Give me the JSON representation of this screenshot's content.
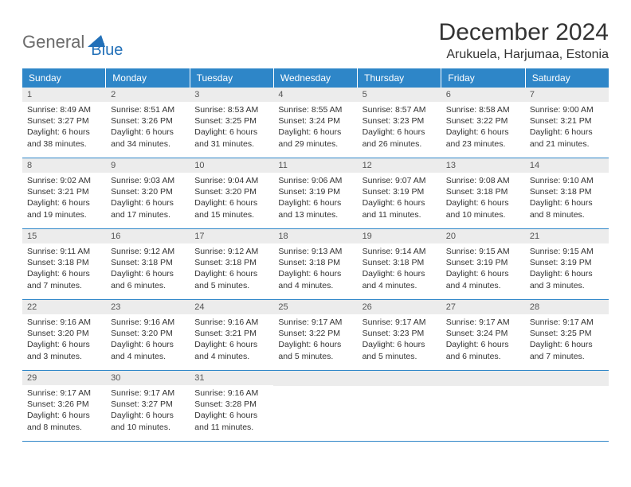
{
  "brand": {
    "part1": "General",
    "part2": "Blue"
  },
  "title": "December 2024",
  "location": "Arukuela, Harjumaa, Estonia",
  "colors": {
    "header_bg": "#2e86c8",
    "header_text": "#ffffff",
    "numbar_bg": "#ececec",
    "border": "#2e86c8",
    "brand_gray": "#6b6b6b",
    "brand_blue": "#2270b8",
    "text": "#333333"
  },
  "day_headers": [
    "Sunday",
    "Monday",
    "Tuesday",
    "Wednesday",
    "Thursday",
    "Friday",
    "Saturday"
  ],
  "weeks": [
    [
      {
        "n": "1",
        "sunrise": "Sunrise: 8:49 AM",
        "sunset": "Sunset: 3:27 PM",
        "day1": "Daylight: 6 hours",
        "day2": "and 38 minutes."
      },
      {
        "n": "2",
        "sunrise": "Sunrise: 8:51 AM",
        "sunset": "Sunset: 3:26 PM",
        "day1": "Daylight: 6 hours",
        "day2": "and 34 minutes."
      },
      {
        "n": "3",
        "sunrise": "Sunrise: 8:53 AM",
        "sunset": "Sunset: 3:25 PM",
        "day1": "Daylight: 6 hours",
        "day2": "and 31 minutes."
      },
      {
        "n": "4",
        "sunrise": "Sunrise: 8:55 AM",
        "sunset": "Sunset: 3:24 PM",
        "day1": "Daylight: 6 hours",
        "day2": "and 29 minutes."
      },
      {
        "n": "5",
        "sunrise": "Sunrise: 8:57 AM",
        "sunset": "Sunset: 3:23 PM",
        "day1": "Daylight: 6 hours",
        "day2": "and 26 minutes."
      },
      {
        "n": "6",
        "sunrise": "Sunrise: 8:58 AM",
        "sunset": "Sunset: 3:22 PM",
        "day1": "Daylight: 6 hours",
        "day2": "and 23 minutes."
      },
      {
        "n": "7",
        "sunrise": "Sunrise: 9:00 AM",
        "sunset": "Sunset: 3:21 PM",
        "day1": "Daylight: 6 hours",
        "day2": "and 21 minutes."
      }
    ],
    [
      {
        "n": "8",
        "sunrise": "Sunrise: 9:02 AM",
        "sunset": "Sunset: 3:21 PM",
        "day1": "Daylight: 6 hours",
        "day2": "and 19 minutes."
      },
      {
        "n": "9",
        "sunrise": "Sunrise: 9:03 AM",
        "sunset": "Sunset: 3:20 PM",
        "day1": "Daylight: 6 hours",
        "day2": "and 17 minutes."
      },
      {
        "n": "10",
        "sunrise": "Sunrise: 9:04 AM",
        "sunset": "Sunset: 3:20 PM",
        "day1": "Daylight: 6 hours",
        "day2": "and 15 minutes."
      },
      {
        "n": "11",
        "sunrise": "Sunrise: 9:06 AM",
        "sunset": "Sunset: 3:19 PM",
        "day1": "Daylight: 6 hours",
        "day2": "and 13 minutes."
      },
      {
        "n": "12",
        "sunrise": "Sunrise: 9:07 AM",
        "sunset": "Sunset: 3:19 PM",
        "day1": "Daylight: 6 hours",
        "day2": "and 11 minutes."
      },
      {
        "n": "13",
        "sunrise": "Sunrise: 9:08 AM",
        "sunset": "Sunset: 3:18 PM",
        "day1": "Daylight: 6 hours",
        "day2": "and 10 minutes."
      },
      {
        "n": "14",
        "sunrise": "Sunrise: 9:10 AM",
        "sunset": "Sunset: 3:18 PM",
        "day1": "Daylight: 6 hours",
        "day2": "and 8 minutes."
      }
    ],
    [
      {
        "n": "15",
        "sunrise": "Sunrise: 9:11 AM",
        "sunset": "Sunset: 3:18 PM",
        "day1": "Daylight: 6 hours",
        "day2": "and 7 minutes."
      },
      {
        "n": "16",
        "sunrise": "Sunrise: 9:12 AM",
        "sunset": "Sunset: 3:18 PM",
        "day1": "Daylight: 6 hours",
        "day2": "and 6 minutes."
      },
      {
        "n": "17",
        "sunrise": "Sunrise: 9:12 AM",
        "sunset": "Sunset: 3:18 PM",
        "day1": "Daylight: 6 hours",
        "day2": "and 5 minutes."
      },
      {
        "n": "18",
        "sunrise": "Sunrise: 9:13 AM",
        "sunset": "Sunset: 3:18 PM",
        "day1": "Daylight: 6 hours",
        "day2": "and 4 minutes."
      },
      {
        "n": "19",
        "sunrise": "Sunrise: 9:14 AM",
        "sunset": "Sunset: 3:18 PM",
        "day1": "Daylight: 6 hours",
        "day2": "and 4 minutes."
      },
      {
        "n": "20",
        "sunrise": "Sunrise: 9:15 AM",
        "sunset": "Sunset: 3:19 PM",
        "day1": "Daylight: 6 hours",
        "day2": "and 4 minutes."
      },
      {
        "n": "21",
        "sunrise": "Sunrise: 9:15 AM",
        "sunset": "Sunset: 3:19 PM",
        "day1": "Daylight: 6 hours",
        "day2": "and 3 minutes."
      }
    ],
    [
      {
        "n": "22",
        "sunrise": "Sunrise: 9:16 AM",
        "sunset": "Sunset: 3:20 PM",
        "day1": "Daylight: 6 hours",
        "day2": "and 3 minutes."
      },
      {
        "n": "23",
        "sunrise": "Sunrise: 9:16 AM",
        "sunset": "Sunset: 3:20 PM",
        "day1": "Daylight: 6 hours",
        "day2": "and 4 minutes."
      },
      {
        "n": "24",
        "sunrise": "Sunrise: 9:16 AM",
        "sunset": "Sunset: 3:21 PM",
        "day1": "Daylight: 6 hours",
        "day2": "and 4 minutes."
      },
      {
        "n": "25",
        "sunrise": "Sunrise: 9:17 AM",
        "sunset": "Sunset: 3:22 PM",
        "day1": "Daylight: 6 hours",
        "day2": "and 5 minutes."
      },
      {
        "n": "26",
        "sunrise": "Sunrise: 9:17 AM",
        "sunset": "Sunset: 3:23 PM",
        "day1": "Daylight: 6 hours",
        "day2": "and 5 minutes."
      },
      {
        "n": "27",
        "sunrise": "Sunrise: 9:17 AM",
        "sunset": "Sunset: 3:24 PM",
        "day1": "Daylight: 6 hours",
        "day2": "and 6 minutes."
      },
      {
        "n": "28",
        "sunrise": "Sunrise: 9:17 AM",
        "sunset": "Sunset: 3:25 PM",
        "day1": "Daylight: 6 hours",
        "day2": "and 7 minutes."
      }
    ],
    [
      {
        "n": "29",
        "sunrise": "Sunrise: 9:17 AM",
        "sunset": "Sunset: 3:26 PM",
        "day1": "Daylight: 6 hours",
        "day2": "and 8 minutes."
      },
      {
        "n": "30",
        "sunrise": "Sunrise: 9:17 AM",
        "sunset": "Sunset: 3:27 PM",
        "day1": "Daylight: 6 hours",
        "day2": "and 10 minutes."
      },
      {
        "n": "31",
        "sunrise": "Sunrise: 9:16 AM",
        "sunset": "Sunset: 3:28 PM",
        "day1": "Daylight: 6 hours",
        "day2": "and 11 minutes."
      },
      {
        "empty": true
      },
      {
        "empty": true
      },
      {
        "empty": true
      },
      {
        "empty": true
      }
    ]
  ]
}
